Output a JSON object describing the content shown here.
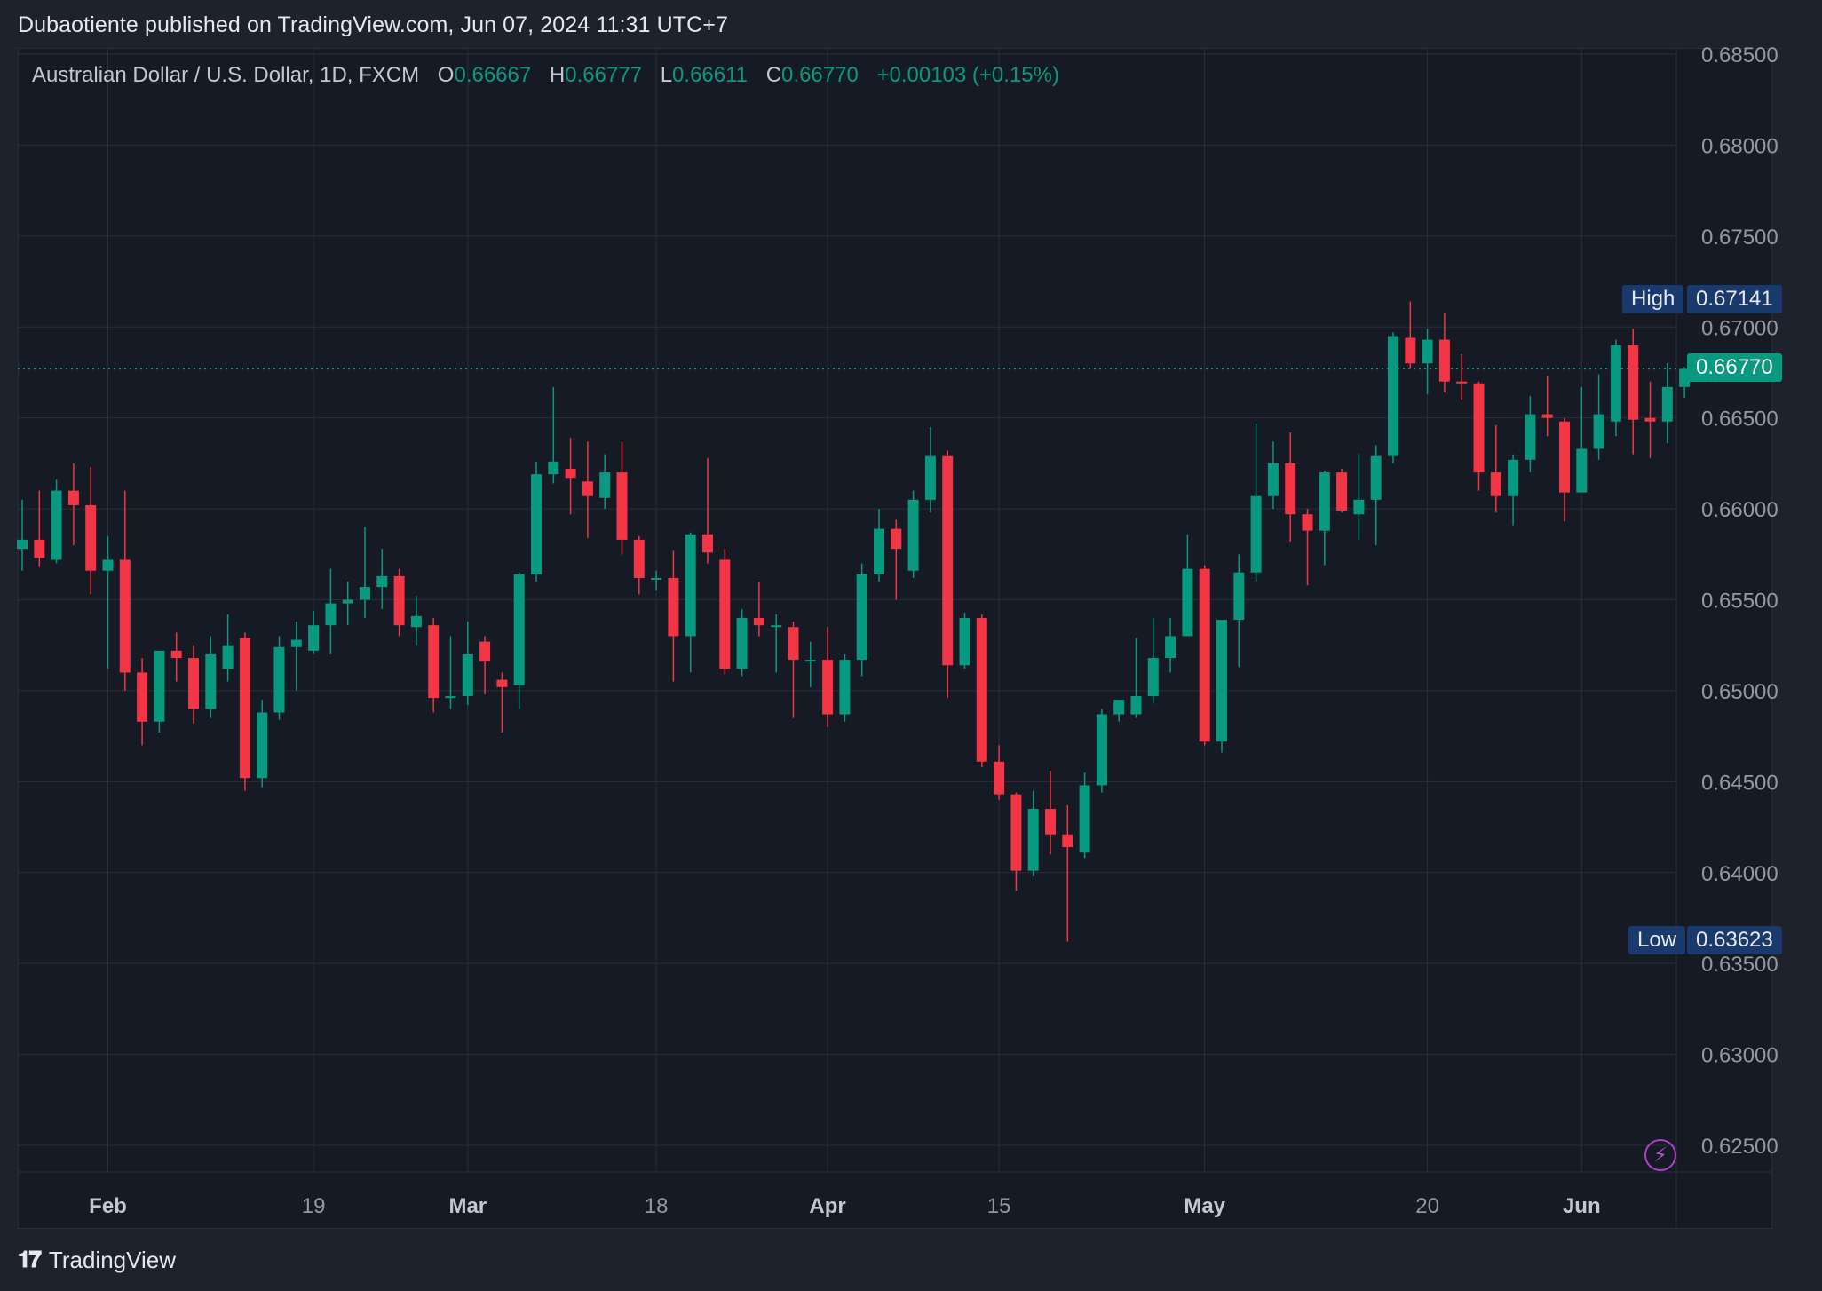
{
  "header": {
    "publisher_line": "Dubaotiente published on TradingView.com, Jun 07, 2024 11:31 UTC+7"
  },
  "legend": {
    "symbol": "Australian Dollar / U.S. Dollar, 1D, FXCM",
    "o_label": "O",
    "o_value": "0.66667",
    "h_label": "H",
    "h_value": "0.66777",
    "l_label": "L",
    "l_value": "0.66611",
    "c_label": "C",
    "c_value": "0.66770",
    "change": "+0.00103 (+0.15%)"
  },
  "badges": {
    "high_label": "High",
    "high_value": "0.67141",
    "low_label": "Low",
    "low_value": "0.63623",
    "last_value": "0.66770"
  },
  "footer": {
    "brand": "TradingView"
  },
  "colors": {
    "up": "#089981",
    "down": "#f23645",
    "background": "#161a25",
    "grid": "#2a2e39",
    "badge_blue": "#1a3a6e"
  },
  "chart_data": {
    "type": "candlestick",
    "title": "Australian Dollar / U.S. Dollar, 1D, FXCM",
    "y_ticks": [
      "0.68500",
      "0.68000",
      "0.67500",
      "0.67000",
      "0.66500",
      "0.66000",
      "0.65500",
      "0.65000",
      "0.64500",
      "0.64000",
      "0.63500",
      "0.63000",
      "0.62500"
    ],
    "y_range": [
      0.6228,
      0.6862
    ],
    "x_ticks": [
      {
        "label": "Feb",
        "index": 5,
        "bold": true
      },
      {
        "label": "19",
        "index": 17,
        "bold": false
      },
      {
        "label": "Mar",
        "index": 26,
        "bold": true
      },
      {
        "label": "18",
        "index": 37,
        "bold": false
      },
      {
        "label": "Apr",
        "index": 47,
        "bold": true
      },
      {
        "label": "15",
        "index": 57,
        "bold": false
      },
      {
        "label": "May",
        "index": 69,
        "bold": true
      },
      {
        "label": "20",
        "index": 82,
        "bold": false
      },
      {
        "label": "Jun",
        "index": 91,
        "bold": true
      }
    ],
    "last_price": 0.6677,
    "candles": [
      {
        "o": 0.6578,
        "h": 0.6605,
        "l": 0.6566,
        "c": 0.6583
      },
      {
        "o": 0.6583,
        "h": 0.661,
        "l": 0.6568,
        "c": 0.6573
      },
      {
        "o": 0.6572,
        "h": 0.6616,
        "l": 0.657,
        "c": 0.661
      },
      {
        "o": 0.661,
        "h": 0.6625,
        "l": 0.658,
        "c": 0.6602
      },
      {
        "o": 0.6602,
        "h": 0.6623,
        "l": 0.6553,
        "c": 0.6566
      },
      {
        "o": 0.6566,
        "h": 0.6585,
        "l": 0.6512,
        "c": 0.6572
      },
      {
        "o": 0.6572,
        "h": 0.661,
        "l": 0.65,
        "c": 0.651
      },
      {
        "o": 0.651,
        "h": 0.6518,
        "l": 0.647,
        "c": 0.6483
      },
      {
        "o": 0.6483,
        "h": 0.6522,
        "l": 0.6477,
        "c": 0.6522
      },
      {
        "o": 0.6522,
        "h": 0.6532,
        "l": 0.6505,
        "c": 0.6518
      },
      {
        "o": 0.6518,
        "h": 0.6525,
        "l": 0.6482,
        "c": 0.649
      },
      {
        "o": 0.649,
        "h": 0.653,
        "l": 0.6485,
        "c": 0.652
      },
      {
        "o": 0.6512,
        "h": 0.6542,
        "l": 0.6505,
        "c": 0.6525
      },
      {
        "o": 0.6529,
        "h": 0.6532,
        "l": 0.6445,
        "c": 0.6452
      },
      {
        "o": 0.6452,
        "h": 0.6495,
        "l": 0.6447,
        "c": 0.6488
      },
      {
        "o": 0.6488,
        "h": 0.653,
        "l": 0.6484,
        "c": 0.6524
      },
      {
        "o": 0.6524,
        "h": 0.6538,
        "l": 0.65,
        "c": 0.6528
      },
      {
        "o": 0.6522,
        "h": 0.6544,
        "l": 0.652,
        "c": 0.6536
      },
      {
        "o": 0.6536,
        "h": 0.6567,
        "l": 0.652,
        "c": 0.6548
      },
      {
        "o": 0.6548,
        "h": 0.656,
        "l": 0.6536,
        "c": 0.655
      },
      {
        "o": 0.655,
        "h": 0.659,
        "l": 0.654,
        "c": 0.6557
      },
      {
        "o": 0.6557,
        "h": 0.6578,
        "l": 0.6545,
        "c": 0.6563
      },
      {
        "o": 0.6563,
        "h": 0.6567,
        "l": 0.653,
        "c": 0.6536
      },
      {
        "o": 0.6535,
        "h": 0.6552,
        "l": 0.6525,
        "c": 0.6541
      },
      {
        "o": 0.6536,
        "h": 0.654,
        "l": 0.6488,
        "c": 0.6496
      },
      {
        "o": 0.6496,
        "h": 0.653,
        "l": 0.649,
        "c": 0.6497
      },
      {
        "o": 0.6497,
        "h": 0.6538,
        "l": 0.6492,
        "c": 0.652
      },
      {
        "o": 0.6527,
        "h": 0.653,
        "l": 0.6498,
        "c": 0.6516
      },
      {
        "o": 0.6506,
        "h": 0.651,
        "l": 0.6477,
        "c": 0.6502
      },
      {
        "o": 0.6503,
        "h": 0.6565,
        "l": 0.649,
        "c": 0.6564
      },
      {
        "o": 0.6564,
        "h": 0.6626,
        "l": 0.656,
        "c": 0.6619
      },
      {
        "o": 0.6619,
        "h": 0.6667,
        "l": 0.6614,
        "c": 0.6626
      },
      {
        "o": 0.6622,
        "h": 0.6639,
        "l": 0.6597,
        "c": 0.6617
      },
      {
        "o": 0.6615,
        "h": 0.6637,
        "l": 0.6584,
        "c": 0.6607
      },
      {
        "o": 0.6606,
        "h": 0.663,
        "l": 0.66,
        "c": 0.662
      },
      {
        "o": 0.662,
        "h": 0.6637,
        "l": 0.6575,
        "c": 0.6583
      },
      {
        "o": 0.6583,
        "h": 0.6585,
        "l": 0.6553,
        "c": 0.6562
      },
      {
        "o": 0.6562,
        "h": 0.6566,
        "l": 0.6555,
        "c": 0.6562
      },
      {
        "o": 0.6562,
        "h": 0.6577,
        "l": 0.6505,
        "c": 0.653
      },
      {
        "o": 0.653,
        "h": 0.6587,
        "l": 0.651,
        "c": 0.6586
      },
      {
        "o": 0.6586,
        "h": 0.6628,
        "l": 0.657,
        "c": 0.6576
      },
      {
        "o": 0.6572,
        "h": 0.6578,
        "l": 0.6509,
        "c": 0.6512
      },
      {
        "o": 0.6512,
        "h": 0.6545,
        "l": 0.6508,
        "c": 0.654
      },
      {
        "o": 0.654,
        "h": 0.656,
        "l": 0.653,
        "c": 0.6536
      },
      {
        "o": 0.6536,
        "h": 0.6542,
        "l": 0.651,
        "c": 0.6536
      },
      {
        "o": 0.6535,
        "h": 0.6538,
        "l": 0.6485,
        "c": 0.6517
      },
      {
        "o": 0.6517,
        "h": 0.6527,
        "l": 0.6502,
        "c": 0.6517
      },
      {
        "o": 0.6517,
        "h": 0.6535,
        "l": 0.648,
        "c": 0.6487
      },
      {
        "o": 0.6487,
        "h": 0.652,
        "l": 0.6483,
        "c": 0.6517
      },
      {
        "o": 0.6517,
        "h": 0.657,
        "l": 0.6508,
        "c": 0.6564
      },
      {
        "o": 0.6564,
        "h": 0.66,
        "l": 0.656,
        "c": 0.6589
      },
      {
        "o": 0.6589,
        "h": 0.6594,
        "l": 0.655,
        "c": 0.6578
      },
      {
        "o": 0.6566,
        "h": 0.661,
        "l": 0.6562,
        "c": 0.6605
      },
      {
        "o": 0.6605,
        "h": 0.6645,
        "l": 0.6598,
        "c": 0.6629
      },
      {
        "o": 0.6629,
        "h": 0.6632,
        "l": 0.6496,
        "c": 0.6514
      },
      {
        "o": 0.6514,
        "h": 0.6543,
        "l": 0.6512,
        "c": 0.654
      },
      {
        "o": 0.654,
        "h": 0.6542,
        "l": 0.6458,
        "c": 0.6461
      },
      {
        "o": 0.6461,
        "h": 0.647,
        "l": 0.644,
        "c": 0.6443
      },
      {
        "o": 0.6443,
        "h": 0.6444,
        "l": 0.639,
        "c": 0.6401
      },
      {
        "o": 0.6401,
        "h": 0.6445,
        "l": 0.6398,
        "c": 0.6435
      },
      {
        "o": 0.6435,
        "h": 0.6456,
        "l": 0.641,
        "c": 0.6421
      },
      {
        "o": 0.6421,
        "h": 0.6437,
        "l": 0.6362,
        "c": 0.6414
      },
      {
        "o": 0.6411,
        "h": 0.6455,
        "l": 0.6408,
        "c": 0.6448
      },
      {
        "o": 0.6448,
        "h": 0.649,
        "l": 0.6444,
        "c": 0.6487
      },
      {
        "o": 0.6487,
        "h": 0.649,
        "l": 0.6483,
        "c": 0.6495
      },
      {
        "o": 0.6487,
        "h": 0.6529,
        "l": 0.6485,
        "c": 0.6497
      },
      {
        "o": 0.6497,
        "h": 0.654,
        "l": 0.6493,
        "c": 0.6518
      },
      {
        "o": 0.6518,
        "h": 0.654,
        "l": 0.651,
        "c": 0.653
      },
      {
        "o": 0.653,
        "h": 0.6586,
        "l": 0.653,
        "c": 0.6567
      },
      {
        "o": 0.6567,
        "h": 0.6569,
        "l": 0.647,
        "c": 0.6472
      },
      {
        "o": 0.6472,
        "h": 0.6538,
        "l": 0.6466,
        "c": 0.6539
      },
      {
        "o": 0.6539,
        "h": 0.6575,
        "l": 0.6513,
        "c": 0.6565
      },
      {
        "o": 0.6565,
        "h": 0.6647,
        "l": 0.656,
        "c": 0.6607
      },
      {
        "o": 0.6607,
        "h": 0.6637,
        "l": 0.66,
        "c": 0.6625
      },
      {
        "o": 0.6625,
        "h": 0.6642,
        "l": 0.6582,
        "c": 0.6597
      },
      {
        "o": 0.6597,
        "h": 0.66,
        "l": 0.6558,
        "c": 0.6588
      },
      {
        "o": 0.6588,
        "h": 0.6621,
        "l": 0.6569,
        "c": 0.662
      },
      {
        "o": 0.662,
        "h": 0.6622,
        "l": 0.6598,
        "c": 0.6599
      },
      {
        "o": 0.6597,
        "h": 0.663,
        "l": 0.6583,
        "c": 0.6605
      },
      {
        "o": 0.6605,
        "h": 0.6635,
        "l": 0.658,
        "c": 0.6629
      },
      {
        "o": 0.6629,
        "h": 0.6697,
        "l": 0.6625,
        "c": 0.6695
      },
      {
        "o": 0.6694,
        "h": 0.6714,
        "l": 0.6677,
        "c": 0.668
      },
      {
        "o": 0.668,
        "h": 0.6699,
        "l": 0.6663,
        "c": 0.6693
      },
      {
        "o": 0.6693,
        "h": 0.6708,
        "l": 0.6664,
        "c": 0.667
      },
      {
        "o": 0.667,
        "h": 0.6685,
        "l": 0.666,
        "c": 0.6669
      },
      {
        "o": 0.6669,
        "h": 0.667,
        "l": 0.661,
        "c": 0.662
      },
      {
        "o": 0.662,
        "h": 0.6646,
        "l": 0.6598,
        "c": 0.6607
      },
      {
        "o": 0.6607,
        "h": 0.663,
        "l": 0.6591,
        "c": 0.6627
      },
      {
        "o": 0.6627,
        "h": 0.6662,
        "l": 0.662,
        "c": 0.6652
      },
      {
        "o": 0.6652,
        "h": 0.6673,
        "l": 0.664,
        "c": 0.665
      },
      {
        "o": 0.6648,
        "h": 0.665,
        "l": 0.6593,
        "c": 0.6609
      },
      {
        "o": 0.6609,
        "h": 0.6667,
        "l": 0.6609,
        "c": 0.6633
      },
      {
        "o": 0.6633,
        "h": 0.6674,
        "l": 0.6627,
        "c": 0.6652
      },
      {
        "o": 0.6648,
        "h": 0.6693,
        "l": 0.664,
        "c": 0.669
      },
      {
        "o": 0.669,
        "h": 0.6699,
        "l": 0.663,
        "c": 0.6649
      },
      {
        "o": 0.665,
        "h": 0.667,
        "l": 0.6628,
        "c": 0.6648
      },
      {
        "o": 0.6648,
        "h": 0.668,
        "l": 0.6636,
        "c": 0.6667
      },
      {
        "o": 0.6667,
        "h": 0.6678,
        "l": 0.6661,
        "c": 0.6677
      }
    ]
  }
}
